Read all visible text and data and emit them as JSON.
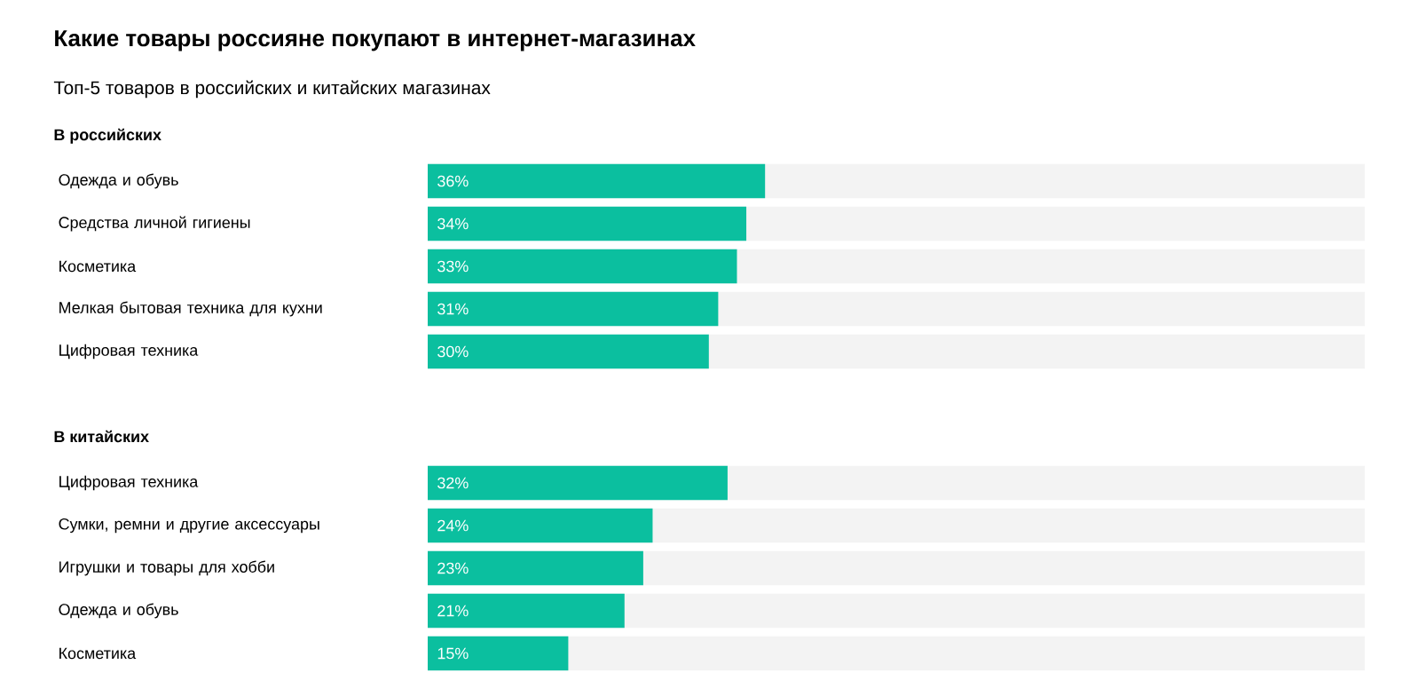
{
  "chart_data": [
    {
      "type": "bar",
      "orientation": "horizontal",
      "title": "Какие товары россияне покупают в интернет-магазинах",
      "subtitle": "Топ-5 товаров в российских и китайских магазинах",
      "annotations": [
        "В российских"
      ],
      "categories": [
        "Одежда и обувь",
        "Средства личной гигиены",
        "Косметика",
        "Мелкая бытовая техника для кухни",
        "Цифровая техника"
      ],
      "values": [
        36,
        34,
        33,
        31,
        30
      ],
      "value_labels": [
        "36%",
        "34%",
        "33%",
        "31%",
        "30%"
      ],
      "color": "#0bbf9f",
      "xlim": [
        0,
        100
      ],
      "tick_labels": "y"
    },
    {
      "type": "bar",
      "orientation": "horizontal",
      "title": "В китайских",
      "categories": [
        "Цифровая техника",
        "Сумки, ремни и другие аксессуары",
        "Игрушки и товары для хобби",
        "Одежда и обувь",
        "Косметика"
      ],
      "values": [
        32,
        24,
        23,
        21,
        15
      ],
      "value_labels": [
        "32%",
        "24%",
        "23%",
        "21%",
        "15%"
      ],
      "color": "#0bbf9f",
      "xlim": [
        0,
        100
      ],
      "tick_labels": "y"
    }
  ]
}
